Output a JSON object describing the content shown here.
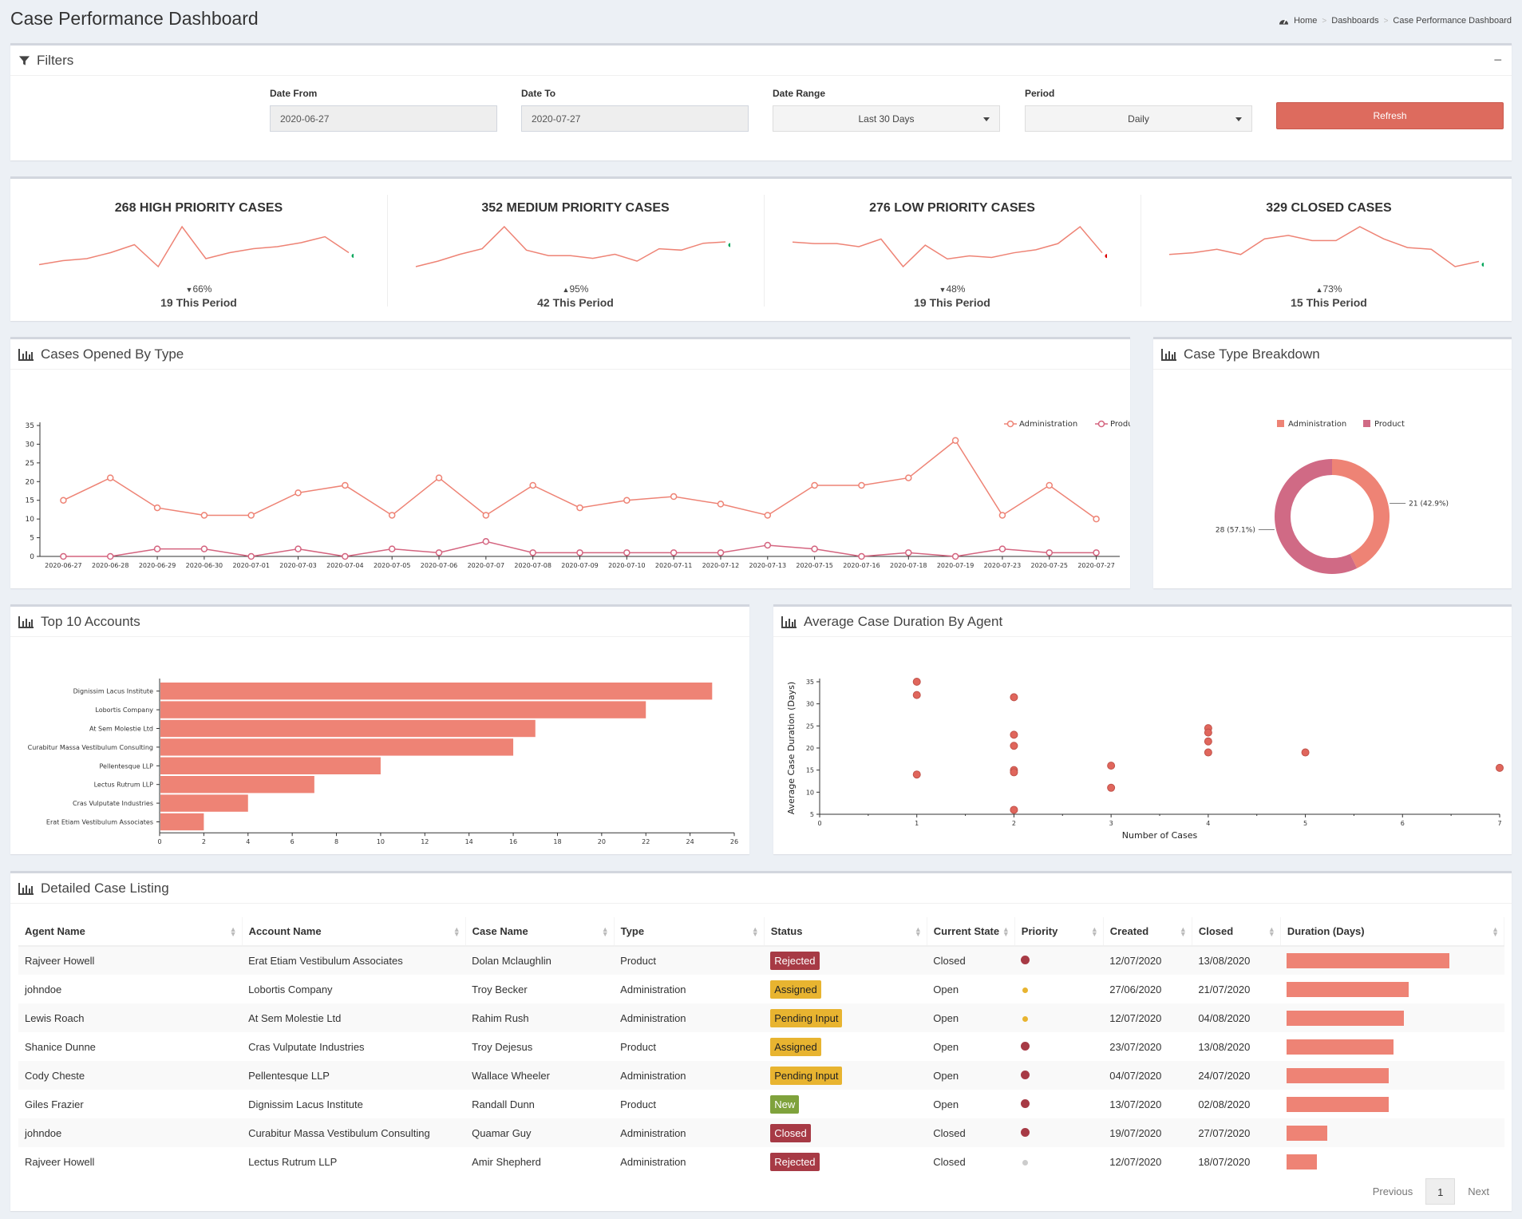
{
  "page": {
    "title": "Case Performance Dashboard",
    "breadcrumb": [
      "Home",
      "Dashboards",
      "Case Performance Dashboard"
    ]
  },
  "filters": {
    "title": "Filters",
    "collapse_label": "−",
    "date_from": {
      "label": "Date From",
      "value": "2020-06-27"
    },
    "date_to": {
      "label": "Date To",
      "value": "2020-07-27"
    },
    "date_range": {
      "label": "Date Range",
      "value": "Last 30 Days"
    },
    "period": {
      "label": "Period",
      "value": "Daily"
    },
    "refresh_label": "Refresh",
    "refresh_color": "#dd6b5e"
  },
  "kpis": [
    {
      "title": "268 HIGH PRIORITY CASES",
      "pct": "66%",
      "dir": "down",
      "period": "19 This Period",
      "dot": "#00a65a",
      "spark": [
        3,
        5,
        6,
        9,
        13,
        2,
        22,
        6,
        9,
        11,
        12,
        14,
        17,
        9
      ]
    },
    {
      "title": "352 MEDIUM PRIORITY CASES",
      "pct": "95%",
      "dir": "up",
      "period": "42 This Period",
      "dot": "#00a65a",
      "spark": [
        2,
        6,
        11,
        15,
        31,
        14,
        10,
        10,
        8,
        11,
        6,
        15,
        14,
        19,
        20
      ]
    },
    {
      "title": "276 LOW PRIORITY CASES",
      "pct": "48%",
      "dir": "down",
      "period": "19 This Period",
      "dot": "#dd0000",
      "spark": [
        18,
        17,
        17,
        15,
        20,
        2,
        16,
        7,
        9,
        8,
        11,
        13,
        17,
        28,
        11
      ]
    },
    {
      "title": "329 CLOSED CASES",
      "pct": "73%",
      "dir": "up",
      "period": "15 This Period",
      "dot": "#00a65a",
      "spark": [
        10,
        11,
        13,
        10,
        19,
        21,
        18,
        18,
        26,
        19,
        14,
        13,
        3,
        6
      ]
    }
  ],
  "cases_by_type": {
    "title": "Cases Opened By Type",
    "icon": "bar-chart-icon"
  },
  "case_type_breakdown": {
    "title": "Case Type Breakdown",
    "icon": "bar-chart-icon"
  },
  "top_accounts": {
    "title": "Top 10 Accounts",
    "icon": "bar-chart-icon"
  },
  "avg_duration": {
    "title": "Average Case Duration By Agent",
    "icon": "scatter-chart-icon"
  },
  "chart_data": [
    {
      "type": "line",
      "categories": [
        "2020-06-27",
        "2020-06-28",
        "2020-06-29",
        "2020-06-30",
        "2020-07-01",
        "2020-07-03",
        "2020-07-04",
        "2020-07-05",
        "2020-07-06",
        "2020-07-07",
        "2020-07-08",
        "2020-07-09",
        "2020-07-10",
        "2020-07-11",
        "2020-07-12",
        "2020-07-13",
        "2020-07-15",
        "2020-07-16",
        "2020-07-18",
        "2020-07-19",
        "2020-07-23",
        "2020-07-25",
        "2020-07-27"
      ],
      "series": [
        {
          "name": "Administration",
          "color": "#ee8375",
          "values": [
            15,
            21,
            13,
            11,
            11,
            17,
            19,
            11,
            21,
            11,
            19,
            13,
            15,
            16,
            14,
            11,
            19,
            19,
            21,
            31,
            11,
            19,
            10
          ]
        },
        {
          "name": "Product",
          "color": "#d4647f",
          "values": [
            0,
            0,
            2,
            2,
            0,
            2,
            0,
            2,
            1,
            4,
            1,
            1,
            1,
            1,
            1,
            3,
            2,
            0,
            1,
            0,
            2,
            1,
            1
          ]
        }
      ],
      "ylim": [
        0,
        35
      ],
      "yticks": [
        0,
        5,
        10,
        15,
        20,
        25,
        30,
        35
      ],
      "legend": "top-right"
    },
    {
      "type": "pie",
      "categories": [
        "Administration",
        "Product"
      ],
      "values": [
        21,
        28
      ],
      "labels": [
        "21 (42.9%)",
        "28 (57.1%)"
      ],
      "colors": [
        "#ee8375",
        "#d06a85"
      ],
      "legend": "top"
    },
    {
      "type": "bar",
      "orientation": "horizontal",
      "categories": [
        "Dignissim Lacus Institute",
        "Lobortis Company",
        "At Sem Molestie Ltd",
        "Curabitur Massa Vestibulum Consulting",
        "Pellentesque LLP",
        "Lectus Rutrum LLP",
        "Cras Vulputate Industries",
        "Erat Etiam Vestibulum Associates"
      ],
      "values": [
        25,
        22,
        17,
        16,
        10,
        7,
        4,
        2
      ],
      "xlim": [
        0,
        26
      ],
      "xticks": [
        0,
        2,
        4,
        6,
        8,
        10,
        12,
        14,
        16,
        18,
        20,
        22,
        24,
        26
      ],
      "color": "#ee8375"
    },
    {
      "type": "scatter",
      "xlabel": "Number of Cases",
      "ylabel": "Average Case Duration (Days)",
      "x": [
        1,
        1,
        1,
        2,
        2,
        2,
        2,
        2,
        2,
        3,
        3,
        4,
        4,
        4,
        4,
        5,
        7
      ],
      "y": [
        35,
        32,
        14,
        31.5,
        23,
        20.5,
        15,
        14.5,
        6,
        16,
        11,
        24.5,
        23.5,
        21.5,
        19,
        19,
        15.5
      ],
      "xlim": [
        0,
        7
      ],
      "ylim": [
        5,
        35
      ],
      "xticks": [
        0,
        1,
        2,
        3,
        4,
        5,
        6,
        7
      ],
      "yticks": [
        5,
        10,
        15,
        20,
        25,
        30,
        35
      ],
      "color": "#e0665c"
    }
  ],
  "case_listing": {
    "title": "Detailed Case Listing",
    "columns": [
      "Agent Name",
      "Account Name",
      "Case Name",
      "Type",
      "Status",
      "Current State",
      "Priority",
      "Created",
      "Closed",
      "Duration (Days)"
    ],
    "rows": [
      {
        "agent": "Rajveer Howell",
        "account": "Erat Etiam Vestibulum Associates",
        "case": "Dolan Mclaughlin",
        "type": "Product",
        "status": "Rejected",
        "status_class": "st-rejected",
        "state": "Closed",
        "priority": "high",
        "created": "12/07/2020",
        "closed": "13/08/2020",
        "duration": 32
      },
      {
        "agent": "johndoe",
        "account": "Lobortis Company",
        "case": "Troy Becker",
        "type": "Administration",
        "status": "Assigned",
        "status_class": "st-assigned",
        "state": "Open",
        "priority": "medium",
        "created": "27/06/2020",
        "closed": "21/07/2020",
        "duration": 24
      },
      {
        "agent": "Lewis Roach",
        "account": "At Sem Molestie Ltd",
        "case": "Rahim Rush",
        "type": "Administration",
        "status": "Pending Input",
        "status_class": "st-pending",
        "state": "Open",
        "priority": "medium",
        "created": "12/07/2020",
        "closed": "04/08/2020",
        "duration": 23
      },
      {
        "agent": "Shanice Dunne",
        "account": "Cras Vulputate Industries",
        "case": "Troy Dejesus",
        "type": "Product",
        "status": "Assigned",
        "status_class": "st-assigned",
        "state": "Open",
        "priority": "high",
        "created": "23/07/2020",
        "closed": "13/08/2020",
        "duration": 21
      },
      {
        "agent": "Cody Cheste",
        "account": "Pellentesque LLP",
        "case": "Wallace Wheeler",
        "type": "Administration",
        "status": "Pending Input",
        "status_class": "st-pending",
        "state": "Open",
        "priority": "high",
        "created": "04/07/2020",
        "closed": "24/07/2020",
        "duration": 20
      },
      {
        "agent": "Giles Frazier",
        "account": "Dignissim Lacus Institute",
        "case": "Randall Dunn",
        "type": "Product",
        "status": "New",
        "status_class": "st-new",
        "state": "Open",
        "priority": "high",
        "created": "13/07/2020",
        "closed": "02/08/2020",
        "duration": 20
      },
      {
        "agent": "johndoe",
        "account": "Curabitur Massa Vestibulum Consulting",
        "case": "Quamar Guy",
        "type": "Administration",
        "status": "Closed",
        "status_class": "st-closed",
        "state": "Closed",
        "priority": "high",
        "created": "19/07/2020",
        "closed": "27/07/2020",
        "duration": 8
      },
      {
        "agent": "Rajveer Howell",
        "account": "Lectus Rutrum LLP",
        "case": "Amir Shepherd",
        "type": "Administration",
        "status": "Rejected",
        "status_class": "st-rejected",
        "state": "Closed",
        "priority": "low",
        "created": "12/07/2020",
        "closed": "18/07/2020",
        "duration": 6
      }
    ],
    "duration_max": 32,
    "priority_colors": {
      "high": "#a73a45",
      "medium": "#e8b430",
      "low": "#cccccc"
    },
    "pagination": {
      "previous": "Previous",
      "current": "1",
      "next": "Next"
    }
  }
}
